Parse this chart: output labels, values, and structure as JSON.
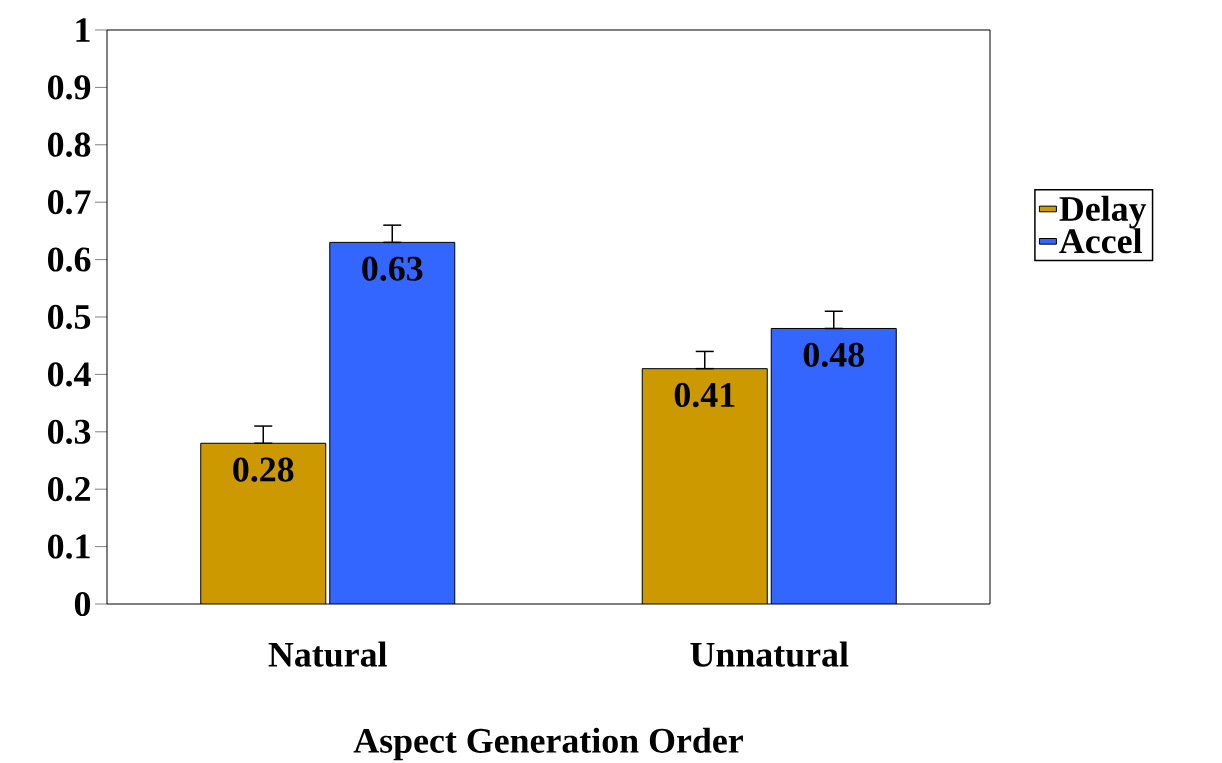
{
  "chart_data": {
    "type": "bar",
    "xlabel": "Aspect Generation Order",
    "categories": [
      "Natural",
      "Unnatural"
    ],
    "series": [
      {
        "name": "Delay",
        "color": "#cc9900",
        "values": [
          0.28,
          0.41
        ],
        "errors": [
          [
            0.28,
            0.31
          ],
          [
            0.41,
            0.44
          ]
        ]
      },
      {
        "name": "Accel",
        "color": "#3366ff",
        "values": [
          0.63,
          0.48
        ],
        "errors": [
          [
            0.63,
            0.66
          ],
          [
            0.48,
            0.51
          ]
        ]
      }
    ],
    "ylim": [
      0,
      1
    ],
    "yticks": [
      0,
      0.1,
      0.2,
      0.3,
      0.4,
      0.5,
      0.6,
      0.7,
      0.8,
      0.9,
      1
    ],
    "data_labels": true,
    "grid": false,
    "legend": "right"
  }
}
